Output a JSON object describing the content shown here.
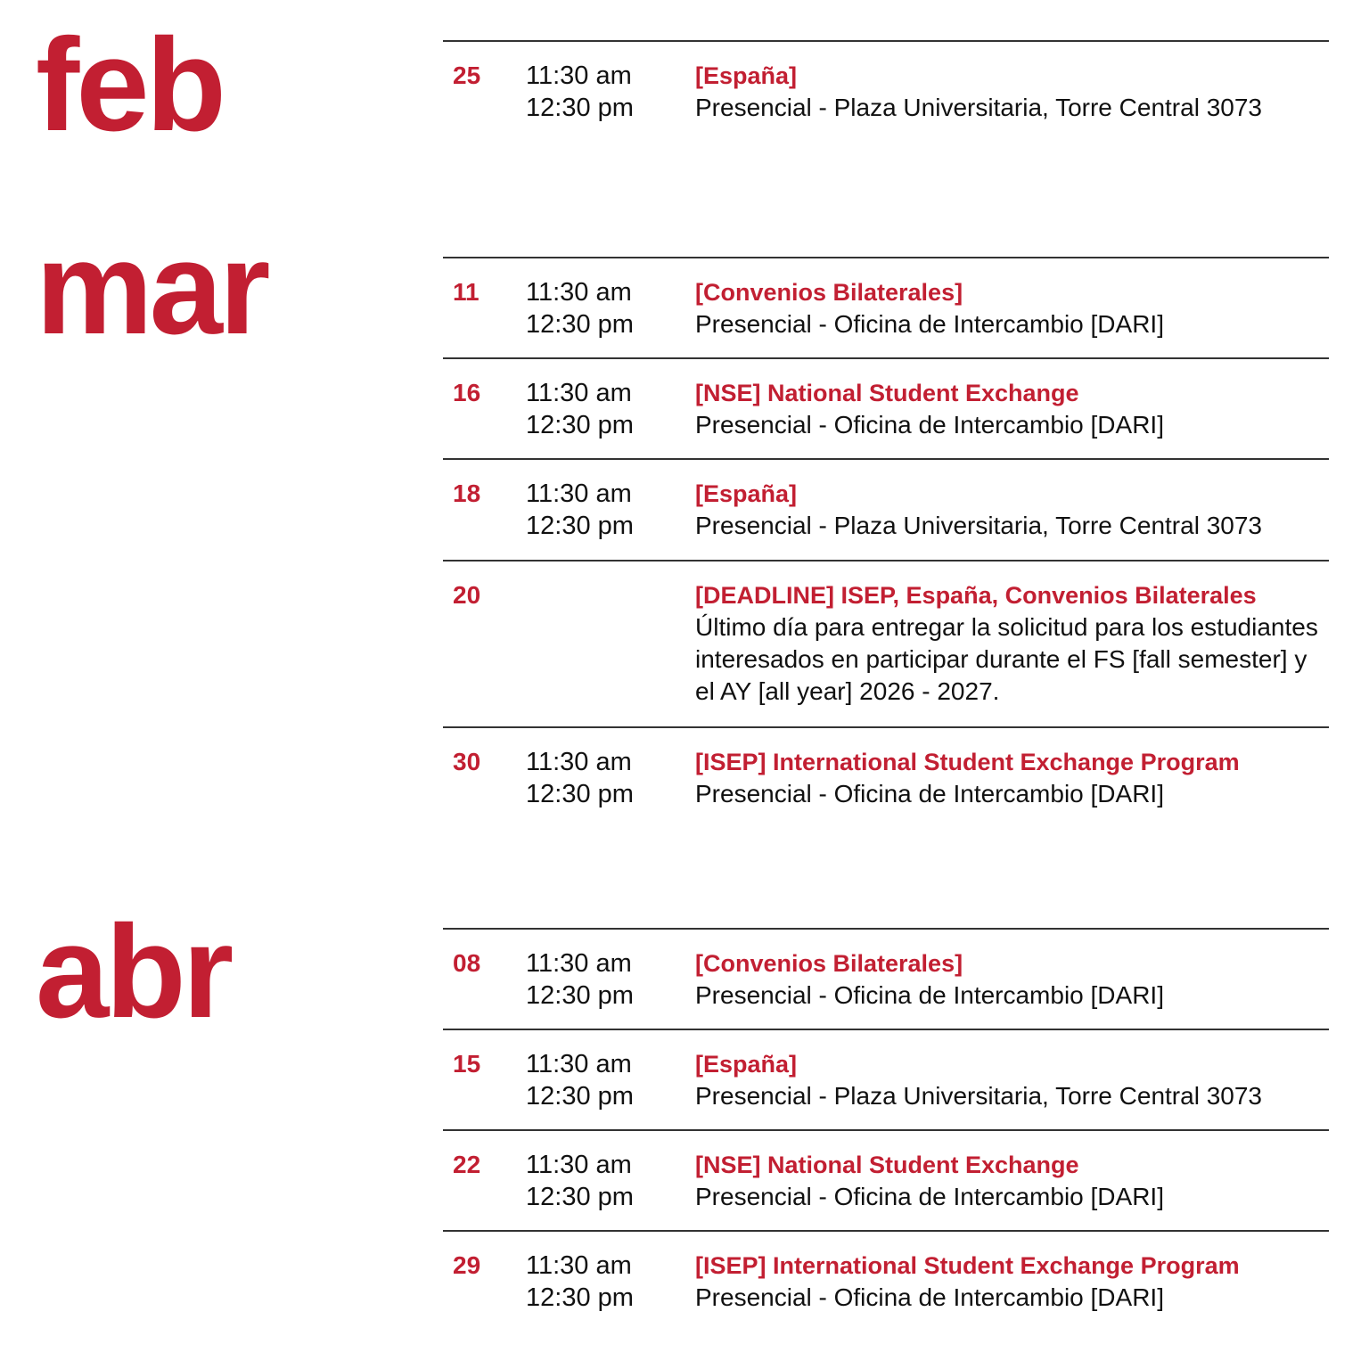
{
  "accent": "#c21f32",
  "months": [
    {
      "label": "feb",
      "events": [
        {
          "day": "25",
          "start": "11:30 am",
          "end": "12:30 pm",
          "title": "[España]",
          "desc": "Presencial - Plaza Universitaria, Torre Central 3073"
        }
      ]
    },
    {
      "label": "mar",
      "events": [
        {
          "day": "11",
          "start": "11:30 am",
          "end": "12:30 pm",
          "title": "[Convenios Bilaterales]",
          "desc": "Presencial - Oficina de Intercambio [DARI]"
        },
        {
          "day": "16",
          "start": "11:30 am",
          "end": "12:30 pm",
          "title": "[NSE] National Student Exchange",
          "desc": "Presencial - Oficina de Intercambio [DARI]"
        },
        {
          "day": "18",
          "start": "11:30 am",
          "end": "12:30 pm",
          "title": "[España]",
          "desc": "Presencial - Plaza Universitaria, Torre Central 3073"
        },
        {
          "day": "20",
          "start": "",
          "end": "",
          "title": "[DEADLINE] ISEP, España, Convenios Bilaterales",
          "desc": "Último día para entregar la solicitud para los estudiantes interesados en participar durante el FS [fall semester] y el AY [all year] 2026 - 2027."
        },
        {
          "day": "30",
          "start": "11:30 am",
          "end": "12:30 pm",
          "title": "[ISEP] International Student Exchange Program",
          "desc": "Presencial - Oficina de Intercambio [DARI]"
        }
      ]
    },
    {
      "label": "abr",
      "events": [
        {
          "day": "08",
          "start": "11:30 am",
          "end": "12:30 pm",
          "title": "[Convenios Bilaterales]",
          "desc": "Presencial - Oficina de Intercambio [DARI]"
        },
        {
          "day": "15",
          "start": "11:30 am",
          "end": "12:30 pm",
          "title": "[España]",
          "desc": "Presencial - Plaza Universitaria, Torre Central 3073"
        },
        {
          "day": "22",
          "start": "11:30 am",
          "end": "12:30 pm",
          "title": "[NSE] National Student Exchange",
          "desc": "Presencial - Oficina de Intercambio [DARI]"
        },
        {
          "day": "29",
          "start": "11:30 am",
          "end": "12:30 pm",
          "title": "[ISEP] International Student Exchange Program",
          "desc": "Presencial - Oficina de Intercambio [DARI]"
        }
      ]
    }
  ]
}
